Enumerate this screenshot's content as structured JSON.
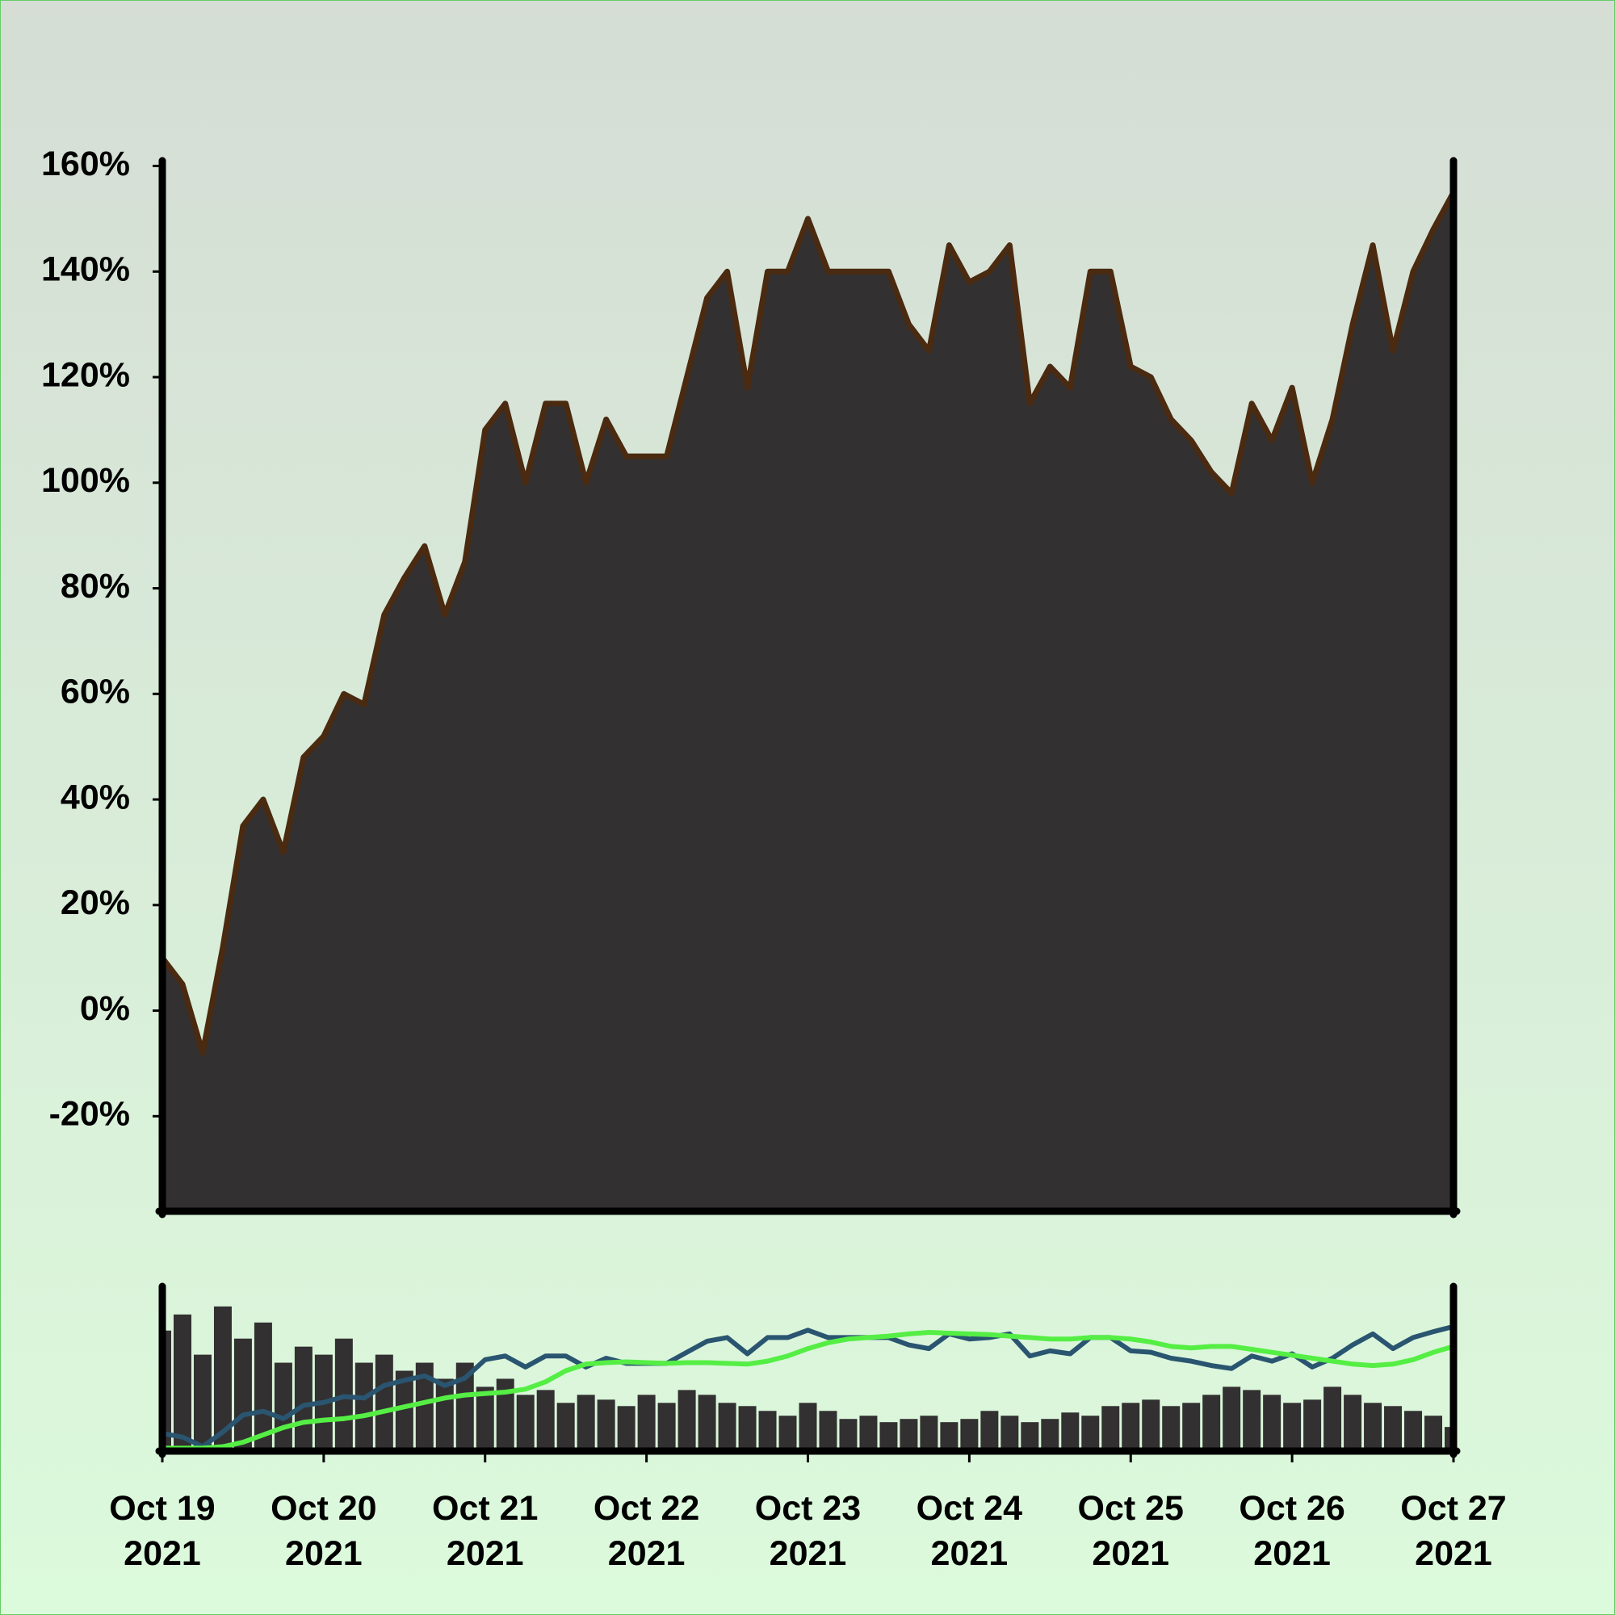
{
  "chart_data": [
    {
      "type": "area",
      "color": "#323031",
      "line_color": "#4a2a10",
      "x": [
        0,
        0.125,
        0.25,
        0.375,
        0.5,
        0.625,
        0.75,
        0.875,
        1,
        1.125,
        1.25,
        1.375,
        1.5,
        1.625,
        1.75,
        1.875,
        2,
        2.125,
        2.25,
        2.375,
        2.5,
        2.625,
        2.75,
        2.875,
        3,
        3.125,
        3.25,
        3.375,
        3.5,
        3.625,
        3.75,
        3.875,
        4,
        4.125,
        4.25,
        4.375,
        4.5,
        4.625,
        4.75,
        4.875,
        5,
        5.125,
        5.25,
        5.375,
        5.5,
        5.625,
        5.75,
        5.875,
        6,
        6.125,
        6.25,
        6.375,
        6.5,
        6.625,
        6.75,
        6.875,
        7,
        7.125,
        7.25,
        7.375,
        7.5,
        7.625,
        7.75,
        7.875,
        8
      ],
      "values": [
        10,
        5,
        -8,
        12,
        35,
        40,
        30,
        48,
        52,
        60,
        58,
        75,
        82,
        88,
        75,
        85,
        110,
        115,
        100,
        115,
        115,
        100,
        112,
        105,
        105,
        105,
        120,
        135,
        140,
        118,
        140,
        140,
        150,
        140,
        140,
        140,
        140,
        130,
        125,
        145,
        138,
        140,
        145,
        115,
        122,
        118,
        140,
        140,
        122,
        120,
        112,
        108,
        102,
        98,
        115,
        108,
        118,
        100,
        112,
        130,
        145,
        125,
        140,
        148,
        155
      ],
      "xlim": [
        0,
        8
      ],
      "ylim": [
        -38,
        161
      ],
      "yticks": [
        {
          "value": -20,
          "label": "-20%"
        },
        {
          "value": 0,
          "label": "0%"
        },
        {
          "value": 20,
          "label": "20%"
        },
        {
          "value": 40,
          "label": "40%"
        },
        {
          "value": 60,
          "label": "60%"
        },
        {
          "value": 80,
          "label": "80%"
        },
        {
          "value": 100,
          "label": "100%"
        },
        {
          "value": 120,
          "label": "120%"
        },
        {
          "value": 140,
          "label": "140%"
        },
        {
          "value": 160,
          "label": "160%"
        }
      ]
    },
    {
      "type": "combo",
      "x": [
        0,
        0.125,
        0.25,
        0.375,
        0.5,
        0.625,
        0.75,
        0.875,
        1,
        1.125,
        1.25,
        1.375,
        1.5,
        1.625,
        1.75,
        1.875,
        2,
        2.125,
        2.25,
        2.375,
        2.5,
        2.625,
        2.75,
        2.875,
        3,
        3.125,
        3.25,
        3.375,
        3.5,
        3.625,
        3.75,
        3.875,
        4,
        4.125,
        4.25,
        4.375,
        4.5,
        4.625,
        4.75,
        4.875,
        5,
        5.125,
        5.25,
        5.375,
        5.5,
        5.625,
        5.75,
        5.875,
        6,
        6.125,
        6.25,
        6.375,
        6.5,
        6.625,
        6.75,
        6.875,
        7,
        7.125,
        7.25,
        7.375,
        7.5,
        7.625,
        7.75,
        7.875,
        8
      ],
      "series": [
        {
          "type": "bar",
          "color": "#323031",
          "values": [
            75,
            85,
            60,
            90,
            70,
            80,
            55,
            65,
            60,
            70,
            55,
            60,
            50,
            55,
            45,
            55,
            40,
            45,
            35,
            38,
            30,
            35,
            32,
            28,
            35,
            30,
            38,
            35,
            30,
            28,
            25,
            22,
            30,
            25,
            20,
            22,
            18,
            20,
            22,
            18,
            20,
            25,
            22,
            18,
            20,
            24,
            22,
            28,
            30,
            32,
            28,
            30,
            35,
            40,
            38,
            35,
            30,
            32,
            40,
            35,
            30,
            28,
            25,
            22,
            15
          ]
        },
        {
          "type": "line",
          "axis": "y2",
          "color": "#2a5570",
          "values": [
            10,
            5,
            -8,
            12,
            35,
            40,
            30,
            48,
            52,
            60,
            58,
            75,
            82,
            88,
            75,
            85,
            110,
            115,
            100,
            115,
            115,
            100,
            112,
            105,
            105,
            105,
            120,
            135,
            140,
            118,
            140,
            140,
            150,
            140,
            140,
            140,
            140,
            130,
            125,
            145,
            138,
            140,
            145,
            115,
            122,
            118,
            140,
            140,
            122,
            120,
            112,
            108,
            102,
            98,
            115,
            108,
            118,
            100,
            112,
            130,
            145,
            125,
            140,
            148,
            155
          ]
        },
        {
          "type": "line",
          "axis": "y2",
          "color": "#55ee44",
          "values": [
            -10,
            -10,
            -10,
            -8,
            -2,
            8,
            18,
            25,
            28,
            30,
            34,
            40,
            46,
            52,
            58,
            62,
            64,
            66,
            70,
            80,
            95,
            104,
            106,
            107,
            106,
            105,
            106,
            106,
            105,
            104,
            108,
            115,
            125,
            133,
            138,
            140,
            142,
            145,
            147,
            146,
            145,
            144,
            142,
            140,
            138,
            138,
            140,
            140,
            138,
            134,
            128,
            126,
            128,
            128,
            124,
            120,
            116,
            112,
            108,
            104,
            102,
            104,
            110,
            120,
            128
          ]
        }
      ],
      "xlim": [
        0,
        8
      ],
      "ylim": [
        0,
        100
      ],
      "y2lim": [
        -14,
        204
      ],
      "xticks": [
        {
          "value": 0,
          "label": "Oct 19 2021"
        },
        {
          "value": 1,
          "label": "Oct 20 2021"
        },
        {
          "value": 2,
          "label": "Oct 21 2021"
        },
        {
          "value": 3,
          "label": "Oct 22 2021"
        },
        {
          "value": 4,
          "label": "Oct 23 2021"
        },
        {
          "value": 5,
          "label": "Oct 24 2021"
        },
        {
          "value": 6,
          "label": "Oct 25 2021"
        },
        {
          "value": 7,
          "label": "Oct 26 2021"
        },
        {
          "value": 8,
          "label": "Oct 27 2021"
        }
      ]
    }
  ]
}
